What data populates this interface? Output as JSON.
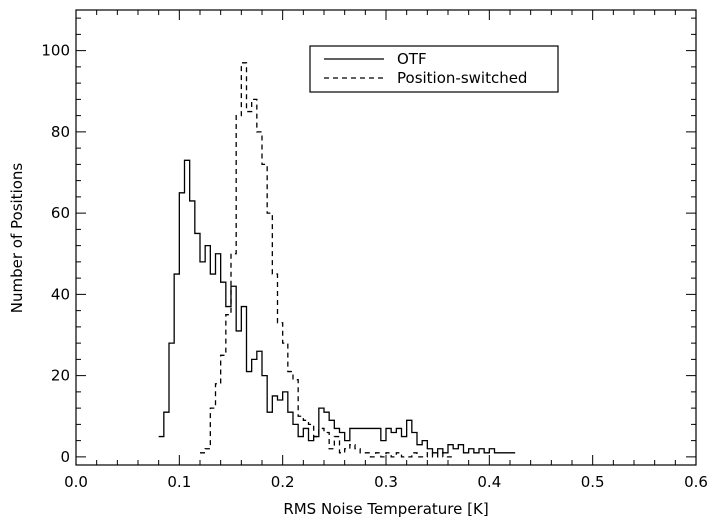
{
  "chart_data": {
    "type": "line",
    "step": true,
    "title": "",
    "xlabel": "RMS Noise Temperature [K]",
    "ylabel": "Number of Positions",
    "xlim": [
      0.0,
      0.6
    ],
    "ylim": [
      -2,
      110
    ],
    "xticks": [
      0.0,
      0.1,
      0.2,
      0.3,
      0.4,
      0.5,
      0.6
    ],
    "xtick_labels": [
      "0.0",
      "0.1",
      "0.2",
      "0.3",
      "0.4",
      "0.5",
      "0.6"
    ],
    "yticks": [
      0,
      20,
      40,
      60,
      80,
      100
    ],
    "ytick_labels": [
      "0",
      "20",
      "40",
      "60",
      "80",
      "100"
    ],
    "grid": false,
    "legend_position": "top-right",
    "bin_width": 0.005,
    "series": [
      {
        "name": "OTF",
        "dash": "solid",
        "x_start": 0.08,
        "values": [
          5,
          11,
          28,
          45,
          65,
          73,
          63,
          55,
          48,
          52,
          45,
          50,
          43,
          37,
          42,
          31,
          37,
          21,
          24,
          26,
          20,
          11,
          15,
          14,
          16,
          11,
          8,
          5,
          7,
          4,
          5,
          12,
          11,
          9,
          7,
          6,
          4,
          7,
          7,
          7,
          7,
          7,
          7,
          4,
          7,
          6,
          7,
          5,
          9,
          6,
          3,
          4,
          2,
          1,
          2,
          1,
          3,
          2,
          3,
          1,
          2,
          1,
          2,
          1,
          2,
          1,
          1,
          1,
          1
        ]
      },
      {
        "name": "Position-switched",
        "dash": "dashed",
        "x_start": 0.12,
        "values": [
          1,
          2,
          12,
          18,
          25,
          35,
          50,
          84,
          97,
          85,
          88,
          80,
          72,
          60,
          45,
          33,
          28,
          21,
          19,
          10,
          9,
          8,
          5,
          7,
          6,
          2,
          5,
          1,
          2,
          3,
          2,
          1,
          1,
          0,
          1,
          0,
          1,
          0,
          1,
          0,
          0,
          1,
          0,
          0,
          1,
          0,
          1,
          0,
          0
        ]
      }
    ]
  }
}
